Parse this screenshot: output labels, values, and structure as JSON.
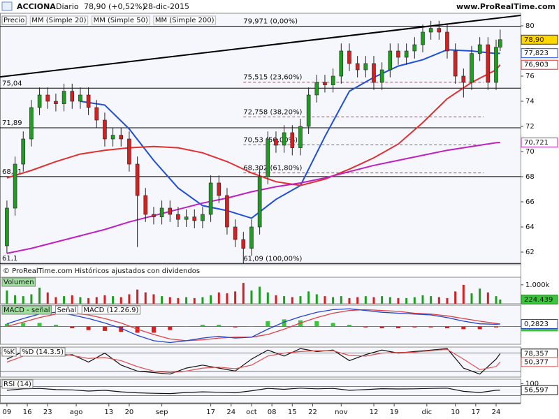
{
  "header": {
    "name": "ACCIONA",
    "period": "Diario",
    "quote": "78,90 (+0,52%)",
    "date": "28-dic-2015",
    "site": "www.ProRealTime.com"
  },
  "footer": "© ProRealTime.com Históricos ajustados con dividendos",
  "x_axis": {
    "xlim": [
      -1.7,
      126
    ],
    "xticks": [
      {
        "value": 0,
        "label": "09"
      },
      {
        "value": 5,
        "label": "16"
      },
      {
        "value": 10,
        "label": "23"
      },
      {
        "value": 17,
        "label": "ago"
      },
      {
        "value": 25,
        "label": "13"
      },
      {
        "value": 30,
        "label": "20"
      },
      {
        "value": 38,
        "label": "sep"
      },
      {
        "value": 50,
        "label": "17"
      },
      {
        "value": 55,
        "label": "24"
      },
      {
        "value": 60,
        "label": "oct"
      },
      {
        "value": 65,
        "label": "08"
      },
      {
        "value": 70,
        "label": "15"
      },
      {
        "value": 75,
        "label": "22"
      },
      {
        "value": 82,
        "label": "nov"
      },
      {
        "value": 90,
        "label": "12"
      },
      {
        "value": 95,
        "label": "19"
      },
      {
        "value": 103,
        "label": "dic"
      },
      {
        "value": 110,
        "label": "10"
      },
      {
        "value": 115,
        "label": "17"
      },
      {
        "value": 120,
        "label": "24"
      }
    ]
  },
  "chart_data": [
    {
      "type": "candlestick",
      "name": "Precio",
      "up_color": "#1e9e1e",
      "down_color": "#d62020",
      "x": [
        0,
        2,
        4,
        6,
        8,
        10,
        12,
        14,
        16,
        18,
        20,
        22,
        24,
        26,
        28,
        30,
        32,
        34,
        36,
        38,
        40,
        42,
        44,
        46,
        48,
        50,
        52,
        54,
        56,
        58,
        60,
        62,
        64,
        66,
        68,
        70,
        72,
        74,
        76,
        78,
        80,
        82,
        84,
        86,
        88,
        90,
        92,
        94,
        96,
        98,
        100,
        102,
        104,
        106,
        108,
        110,
        112,
        114,
        116,
        118,
        120,
        121
      ],
      "open": [
        62.5,
        65.5,
        69.0,
        71.0,
        73.5,
        74.5,
        74.0,
        73.8,
        74.8,
        74.0,
        74.5,
        73.5,
        72.5,
        71.0,
        71.3,
        71.0,
        69.0,
        66.5,
        65.0,
        64.8,
        65.5,
        65.0,
        64.6,
        64.8,
        64.5,
        65.0,
        67.5,
        66.5,
        64.0,
        63.0,
        62.3,
        64.0,
        68.0,
        71.0,
        70.5,
        71.5,
        70.3,
        72.0,
        74.5,
        75.5,
        75.3,
        76.0,
        78.0,
        77.0,
        76.5,
        77.0,
        75.5,
        76.5,
        78.0,
        77.5,
        78.0,
        78.5,
        79.5,
        79.8,
        79.5,
        78.0,
        76.0,
        75.5,
        77.8,
        78.5,
        75.5,
        78.3
      ],
      "high": [
        66.1,
        69.6,
        71.6,
        74.1,
        75.1,
        75.1,
        74.6,
        75.4,
        75.4,
        75.1,
        75.1,
        74.1,
        73.1,
        71.9,
        71.9,
        71.6,
        69.6,
        67.1,
        65.6,
        66.1,
        66.1,
        65.6,
        65.4,
        65.4,
        65.6,
        68.1,
        68.1,
        67.1,
        64.6,
        63.6,
        64.6,
        68.6,
        71.6,
        71.6,
        72.1,
        72.1,
        72.6,
        75.1,
        76.1,
        76.1,
        76.6,
        78.6,
        78.6,
        77.6,
        77.6,
        77.6,
        77.1,
        78.6,
        78.6,
        78.6,
        79.1,
        80.1,
        80.4,
        80.4,
        80.1,
        78.6,
        76.6,
        78.4,
        79.1,
        79.1,
        78.9,
        79.7
      ],
      "low": [
        61.9,
        64.9,
        68.4,
        70.4,
        72.9,
        73.4,
        73.2,
        73.2,
        73.4,
        73.4,
        72.9,
        71.9,
        70.4,
        70.4,
        70.4,
        68.4,
        62.4,
        64.4,
        64.2,
        64.2,
        64.4,
        64.0,
        64.0,
        63.9,
        63.9,
        64.4,
        65.9,
        63.4,
        62.4,
        61.1,
        61.7,
        63.4,
        67.4,
        69.9,
        69.9,
        69.7,
        69.7,
        71.4,
        73.9,
        74.7,
        74.7,
        75.4,
        76.4,
        75.9,
        75.9,
        74.9,
        74.9,
        75.9,
        76.9,
        76.9,
        77.4,
        77.9,
        78.9,
        78.9,
        77.4,
        75.4,
        74.3,
        74.9,
        77.2,
        74.9,
        74.9,
        78.0
      ],
      "close": [
        65.5,
        69.0,
        71.0,
        73.5,
        74.5,
        74.0,
        73.8,
        74.8,
        74.0,
        74.5,
        73.5,
        72.5,
        71.0,
        71.3,
        71.0,
        69.0,
        66.5,
        65.0,
        64.8,
        65.5,
        65.0,
        64.6,
        64.8,
        64.5,
        65.0,
        67.5,
        66.5,
        64.0,
        63.0,
        62.3,
        64.0,
        68.0,
        71.0,
        70.5,
        71.5,
        70.3,
        72.0,
        74.5,
        75.5,
        75.3,
        76.0,
        78.0,
        77.0,
        76.5,
        77.0,
        75.5,
        76.5,
        78.0,
        77.5,
        78.0,
        78.5,
        79.5,
        79.8,
        79.5,
        78.0,
        76.0,
        75.5,
        77.8,
        78.5,
        75.5,
        78.3,
        78.9
      ],
      "last": {
        "value": 78.9,
        "label": "78,90"
      },
      "label_fill": "#ffd800",
      "ylim": [
        61,
        81
      ],
      "yticks": [
        62,
        64,
        66,
        68,
        70,
        72,
        74,
        76,
        78,
        80
      ],
      "series": [
        {
          "name": "MM (Simple 20)",
          "color": "#1f4fd8",
          "x": [
            0,
            6,
            12,
            18,
            24,
            30,
            36,
            42,
            48,
            54,
            60,
            66,
            72,
            78,
            84,
            90,
            96,
            102,
            108,
            114,
            120,
            121
          ],
          "values": [
            null,
            null,
            null,
            74.0,
            73.7,
            71.8,
            69.3,
            67.1,
            65.7,
            65.3,
            64.7,
            66.2,
            67.3,
            71.2,
            74.8,
            75.9,
            76.8,
            77.3,
            78.1,
            78.0,
            77.8,
            77.823
          ],
          "last": {
            "value": 77.823,
            "label": "77,823"
          }
        },
        {
          "name": "MM (Simple 50)",
          "color": "#e03030",
          "x": [
            0,
            6,
            12,
            18,
            24,
            30,
            36,
            42,
            48,
            54,
            60,
            66,
            72,
            78,
            84,
            90,
            96,
            102,
            108,
            114,
            120,
            121
          ],
          "values": [
            67.9,
            68.5,
            69.2,
            69.8,
            70.1,
            70.3,
            70.4,
            70.3,
            69.9,
            69.2,
            68.3,
            67.6,
            67.3,
            67.8,
            68.6,
            69.5,
            70.6,
            72.3,
            74.2,
            75.5,
            76.5,
            76.903
          ],
          "last": {
            "value": 76.903,
            "label": "76,903"
          }
        },
        {
          "name": "MM (Simple 200)",
          "color": "#c020c0",
          "x": [
            0,
            6,
            12,
            18,
            24,
            30,
            36,
            42,
            48,
            54,
            60,
            66,
            72,
            78,
            84,
            90,
            96,
            102,
            108,
            114,
            120,
            121
          ],
          "values": [
            61.9,
            62.3,
            62.8,
            63.3,
            63.8,
            64.4,
            64.9,
            65.4,
            65.9,
            66.3,
            66.8,
            67.2,
            67.5,
            67.9,
            68.4,
            68.9,
            69.3,
            69.7,
            70.1,
            70.4,
            70.7,
            70.721
          ],
          "last": {
            "value": 70.721,
            "label": "70,721"
          }
        }
      ],
      "levels": [
        {
          "value": 75.04,
          "label": "75,04"
        },
        {
          "value": 71.89,
          "label": "71,89"
        },
        {
          "value": 68.01,
          "label": "68,01"
        },
        {
          "value": 61.1,
          "label": "61,1"
        }
      ],
      "fibonacci": [
        {
          "value": 79.971,
          "label": "79,971 (0,00%)"
        },
        {
          "value": 75.515,
          "label": "75,515 (23,60%)"
        },
        {
          "value": 72.758,
          "label": "72,758 (38,20%)"
        },
        {
          "value": 70.53,
          "label": "70,53 (50,00%)"
        },
        {
          "value": 68.302,
          "label": "68,302 (61,80%)"
        },
        {
          "value": 61.09,
          "label": "61,09 (100,00%)"
        }
      ],
      "trendline": {
        "x": [
          -1.7,
          126
        ],
        "y": [
          75.94,
          80.83
        ]
      }
    },
    {
      "type": "bar",
      "name": "Volumen",
      "x": [
        0,
        2,
        4,
        6,
        8,
        10,
        12,
        14,
        16,
        18,
        20,
        22,
        24,
        26,
        28,
        30,
        32,
        34,
        36,
        38,
        40,
        42,
        44,
        46,
        48,
        50,
        52,
        54,
        56,
        58,
        60,
        62,
        64,
        66,
        68,
        70,
        72,
        74,
        76,
        78,
        80,
        82,
        84,
        86,
        88,
        90,
        92,
        94,
        96,
        98,
        100,
        102,
        104,
        106,
        108,
        110,
        112,
        114,
        116,
        118,
        120,
        121
      ],
      "values": [
        700,
        450,
        400,
        500,
        850,
        600,
        350,
        400,
        450,
        350,
        300,
        350,
        450,
        400,
        350,
        500,
        750,
        600,
        500,
        400,
        350,
        300,
        350,
        300,
        350,
        450,
        600,
        550,
        650,
        1100,
        700,
        900,
        600,
        450,
        400,
        350,
        400,
        650,
        500,
        400,
        350,
        400,
        300,
        350,
        400,
        350,
        400,
        350,
        300,
        300,
        350,
        450,
        400,
        350,
        300,
        650,
        1000,
        550,
        800,
        600,
        400,
        224.439
      ],
      "ylim": [
        0,
        1400
      ],
      "yticks": [
        {
          "value": 1000,
          "label": "1.000k"
        }
      ],
      "last": {
        "value": 224.439,
        "label": "224.439"
      },
      "label_fill": "#3cc43c"
    },
    {
      "type": "macd",
      "x": [
        0,
        4,
        8,
        12,
        16,
        20,
        24,
        28,
        32,
        36,
        40,
        44,
        48,
        52,
        56,
        60,
        64,
        68,
        72,
        76,
        80,
        84,
        88,
        92,
        96,
        100,
        104,
        108,
        112,
        116,
        120,
        121
      ],
      "ylim": [
        -2.0,
        2.4
      ],
      "series": [
        {
          "name": "MACD - señal",
          "kind": "bar",
          "color": "#3cc43c",
          "down_color": "#d62020",
          "values": [
            0.3,
            0.4,
            0.4,
            0.2,
            -0.2,
            -0.4,
            -0.5,
            -0.6,
            -0.7,
            -0.7,
            -0.4,
            0.0,
            0.2,
            0.2,
            -0.1,
            0.0,
            0.6,
            0.8,
            0.7,
            0.6,
            0.4,
            0.2,
            -0.1,
            -0.2,
            -0.2,
            -0.1,
            -0.1,
            -0.2,
            -0.3,
            -0.3,
            -0.1,
            0.0064
          ],
          "last": {
            "value": 0.0064,
            "label": "0,0064"
          }
        },
        {
          "name": "Señal",
          "color": "#e04040",
          "values": [
            0.0,
            0.5,
            1.0,
            1.4,
            1.5,
            1.3,
            0.9,
            0.4,
            -0.3,
            -0.9,
            -1.4,
            -1.6,
            -1.5,
            -1.3,
            -1.2,
            -1.2,
            -0.9,
            -0.3,
            0.4,
            1.0,
            1.5,
            1.8,
            1.9,
            1.8,
            1.7,
            1.5,
            1.4,
            1.2,
            0.9,
            0.6,
            0.35,
            0.2759
          ],
          "last": {
            "value": 0.2759,
            "label": "0,2759"
          }
        },
        {
          "name": "MACD (12.26.9)",
          "color": "#2244cc",
          "values": [
            0.3,
            0.9,
            1.4,
            1.6,
            1.3,
            0.9,
            0.4,
            -0.2,
            -1.0,
            -1.6,
            -1.8,
            -1.6,
            -1.3,
            -1.1,
            -1.3,
            -1.2,
            -0.3,
            0.5,
            1.1,
            1.6,
            1.9,
            2.0,
            1.8,
            1.6,
            1.5,
            1.4,
            1.3,
            1.0,
            0.6,
            0.3,
            0.25,
            0.2823
          ],
          "last": {
            "value": 0.2823,
            "label": "0,2823"
          }
        }
      ]
    },
    {
      "type": "line",
      "x": [
        0,
        4,
        8,
        12,
        16,
        20,
        24,
        28,
        32,
        36,
        40,
        44,
        48,
        52,
        56,
        60,
        64,
        68,
        72,
        76,
        80,
        84,
        88,
        92,
        96,
        100,
        104,
        108,
        112,
        116,
        120,
        121
      ],
      "ylim": [
        0,
        100
      ],
      "levels": [
        20,
        80
      ],
      "series": [
        {
          "name": "%K",
          "color": "#111111",
          "values": [
            60,
            85,
            90,
            70,
            75,
            50,
            80,
            40,
            20,
            15,
            10,
            30,
            40,
            30,
            20,
            60,
            90,
            70,
            95,
            85,
            90,
            55,
            75,
            90,
            80,
            85,
            90,
            95,
            30,
            10,
            60,
            78.357
          ],
          "last": {
            "value": 78.357,
            "label": "78,357"
          }
        },
        {
          "name": "%D (14.3.5)",
          "color": "#e05050",
          "values": [
            50,
            70,
            85,
            80,
            72,
            62,
            65,
            55,
            35,
            20,
            15,
            20,
            30,
            33,
            28,
            40,
            70,
            80,
            85,
            88,
            88,
            72,
            70,
            80,
            82,
            83,
            88,
            92,
            60,
            25,
            35,
            50.377
          ],
          "last": {
            "value": 50.377,
            "label": "50,377"
          }
        }
      ]
    },
    {
      "type": "line",
      "x": [
        0,
        4,
        8,
        12,
        16,
        20,
        24,
        28,
        32,
        36,
        40,
        44,
        48,
        52,
        56,
        60,
        64,
        68,
        72,
        76,
        80,
        84,
        88,
        92,
        96,
        100,
        104,
        108,
        112,
        116,
        120,
        121
      ],
      "ylim": [
        -30,
        130
      ],
      "yticks": [
        100
      ],
      "levels": [
        20,
        80
      ],
      "series": [
        {
          "name": "RSI (14)",
          "color": "#111111",
          "values": [
            55,
            65,
            68,
            60,
            58,
            50,
            55,
            45,
            38,
            35,
            33,
            40,
            45,
            42,
            38,
            52,
            68,
            62,
            70,
            65,
            68,
            55,
            60,
            66,
            64,
            65,
            68,
            70,
            48,
            40,
            55,
            56.597
          ],
          "last": {
            "value": 56.597,
            "label": "56,597"
          }
        }
      ]
    }
  ]
}
